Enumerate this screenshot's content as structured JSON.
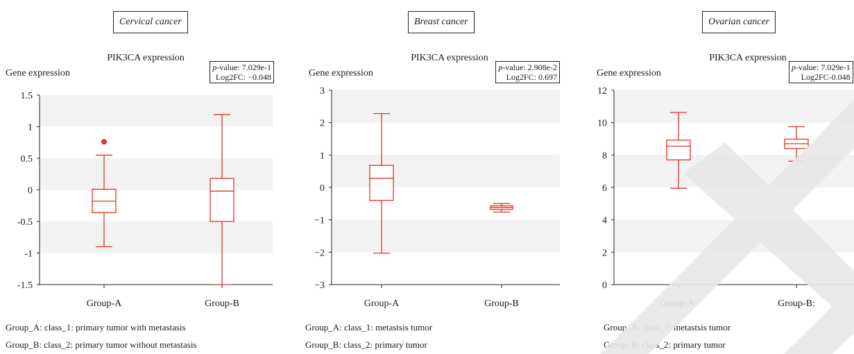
{
  "chart_data": [
    {
      "type": "box",
      "panel_label": "Cervical cancer",
      "title": "PIK3CA expression",
      "ylabel": "Gene expression",
      "categories": [
        "Group-A",
        "Group-B"
      ],
      "ylim": [
        -1.5,
        1.5
      ],
      "yticks": [
        "1.5",
        "1",
        "0.5",
        "0",
        "-0.5",
        "-1",
        "-1.5"
      ],
      "ytick_values": [
        1.5,
        1,
        0.5,
        0,
        -0.5,
        -1,
        -1.5
      ],
      "stats": {
        "p_label": "p",
        "p_text": "-value: 7.029e-1",
        "fc_text": "Log2FC: −0.048"
      },
      "boxes": [
        {
          "min": -0.9,
          "q1": -0.36,
          "median": -0.18,
          "q3": 0.01,
          "max": 0.55,
          "outliers": [
            0.76
          ]
        },
        {
          "min": -1.5,
          "q1": -0.5,
          "median": -0.02,
          "q3": 0.18,
          "max": 1.19,
          "outliers": []
        }
      ],
      "legend_lines": [
        "Group_A: class_1: primary tumor with metastasis",
        "Group_B: class_2: primary tumor without metastasis"
      ]
    },
    {
      "type": "box",
      "panel_label": "Breast cancer",
      "title": "PIK3CA expression",
      "ylabel": "Gene expression",
      "categories": [
        "Group-A",
        "Group-B"
      ],
      "ylim": [
        -3,
        3
      ],
      "yticks": [
        "3",
        "2",
        "1",
        "0",
        "−1",
        "−2",
        "−3"
      ],
      "ytick_values": [
        3,
        2,
        1,
        0,
        -1,
        -2,
        -3
      ],
      "stats": {
        "p_label": "p",
        "p_text": "-value: 2.908e-2",
        "fc_text": "Log2FC: 0.697"
      },
      "boxes": [
        {
          "min": -2.03,
          "q1": -0.4,
          "median": 0.28,
          "q3": 0.68,
          "max": 2.28,
          "outliers": []
        },
        {
          "min": -0.76,
          "q1": -0.68,
          "median": -0.62,
          "q3": -0.57,
          "max": -0.5,
          "outliers": []
        }
      ],
      "legend_lines": [
        "Group_A: class_1: metastsis tumor",
        "Group_B: class_2: primary tumor"
      ]
    },
    {
      "type": "box",
      "panel_label": "Ovarian cancer",
      "title": "PIK3CA expression",
      "ylabel": "Gene expression",
      "categories": [
        "Group-A:",
        "Group-B:"
      ],
      "ylim": [
        0,
        12
      ],
      "yticks": [
        "12",
        "10",
        "8",
        "6",
        "4",
        "2",
        "0"
      ],
      "ytick_values": [
        12,
        10,
        8,
        6,
        4,
        2,
        0
      ],
      "stats": {
        "p_label": "p",
        "p_text": "-value: 7.029e-1",
        "fc_text": "Log2FC-0.048"
      },
      "boxes": [
        {
          "min": 5.95,
          "q1": 7.7,
          "median": 8.55,
          "q3": 8.92,
          "max": 10.63,
          "outliers": []
        },
        {
          "min": 7.62,
          "q1": 8.4,
          "median": 8.7,
          "q3": 8.98,
          "max": 9.75,
          "outliers": []
        }
      ],
      "legend_lines": [
        "Group_A: class_1: metastsis tumor",
        "Group_B: class_2: primary tumor"
      ]
    }
  ],
  "colors": {
    "box": "#e0332a",
    "band": "#f2f2f2",
    "axis": "#222222",
    "watermark": "#e8e8e8"
  }
}
